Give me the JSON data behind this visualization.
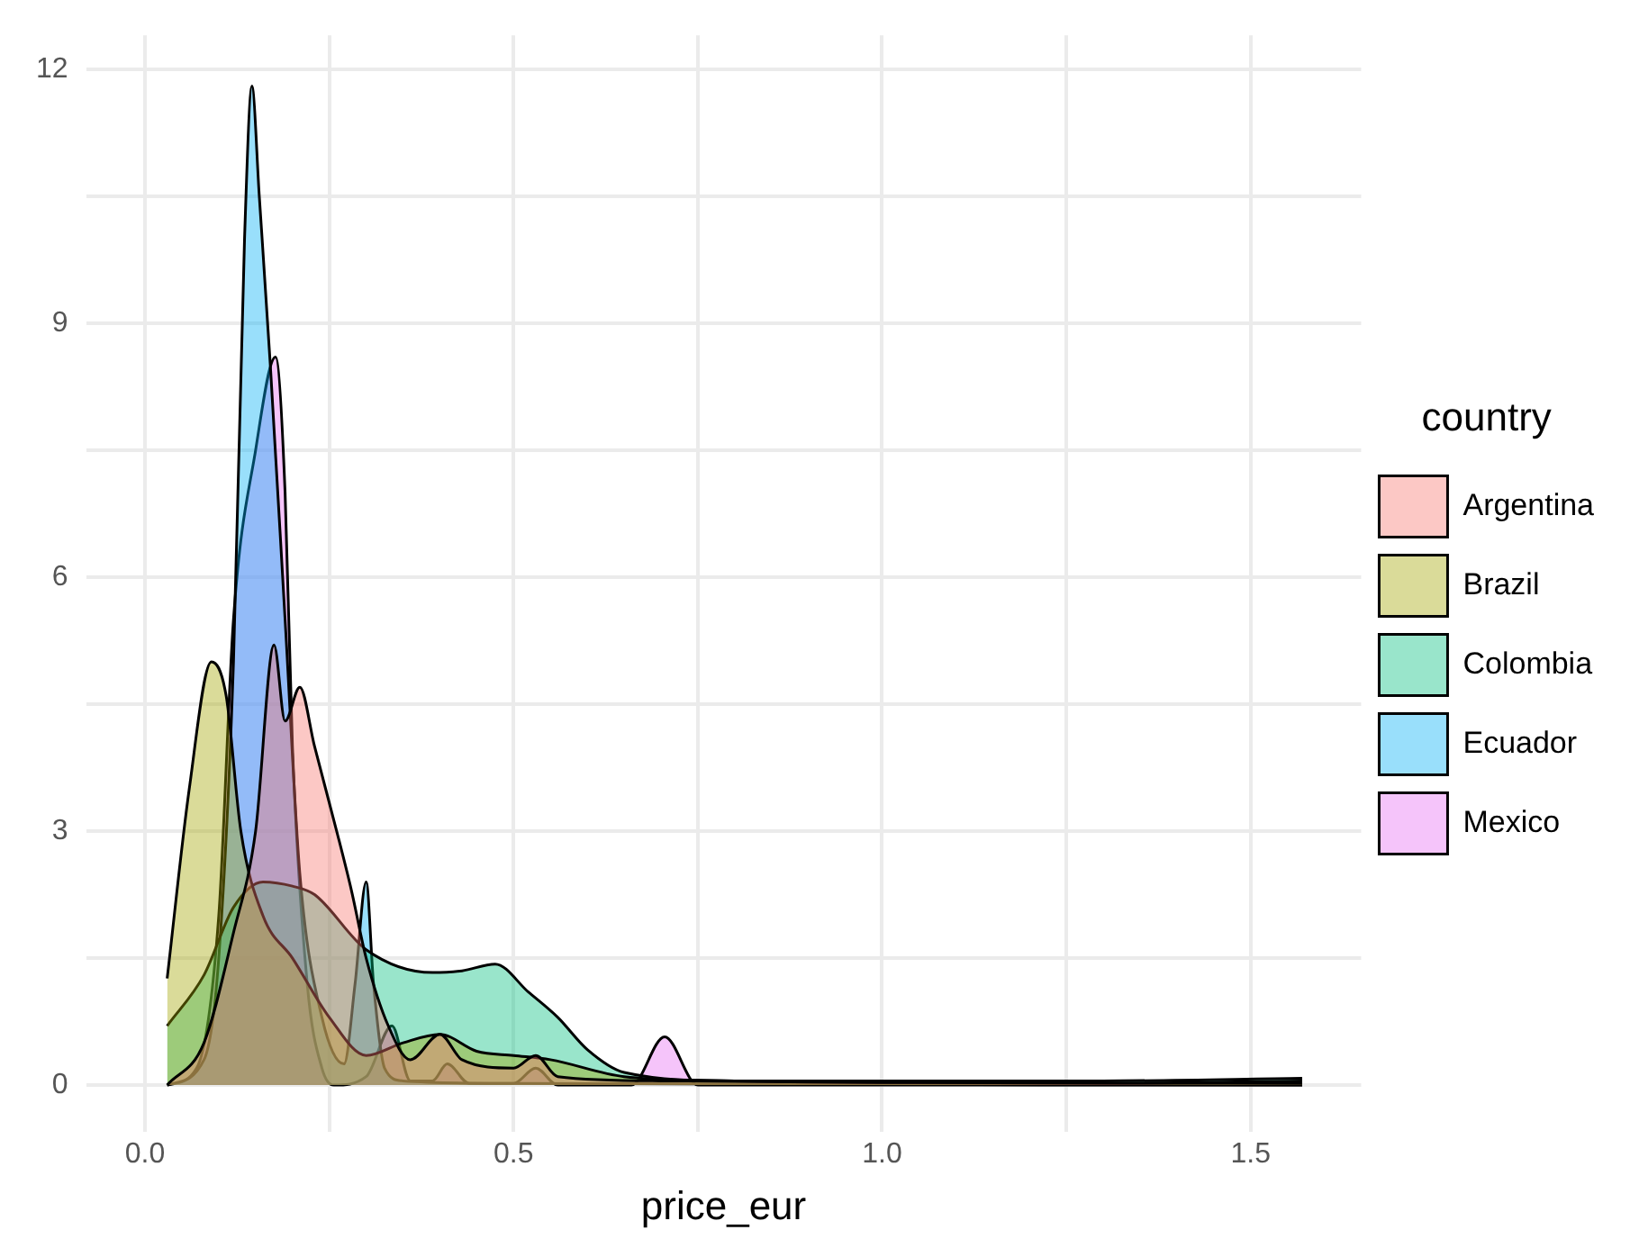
{
  "chart_data": {
    "type": "area",
    "xlabel": "price_eur",
    "legend_title": "country",
    "legend": "right",
    "grid": true,
    "marker": "none",
    "line_style": "solid",
    "xlim": [
      -0.08,
      1.65
    ],
    "ylim": [
      -0.55,
      12.4
    ],
    "xticks": [
      {
        "value": 0,
        "label": "0.0"
      },
      {
        "value": 0.25,
        "label": null
      },
      {
        "value": 0.5,
        "label": "0.5"
      },
      {
        "value": 0.75,
        "label": null
      },
      {
        "value": 1,
        "label": "1.0"
      },
      {
        "value": 1.25,
        "label": null
      },
      {
        "value": 1.5,
        "label": "1.5"
      }
    ],
    "yticks": [
      0,
      {
        "value": 1.5,
        "label": null
      },
      3,
      {
        "value": 4.5,
        "label": null
      },
      6,
      {
        "value": 7.5,
        "label": null
      },
      9,
      {
        "value": 10.5,
        "label": null
      },
      12
    ],
    "series": [
      {
        "name": "Argentina",
        "color": "#f8766d",
        "x": [
          0.03,
          0.08,
          0.12,
          0.15,
          0.175,
          0.19,
          0.21,
          0.23,
          0.26,
          0.28,
          0.3,
          0.33,
          0.36,
          0.4,
          0.43,
          0.5,
          0.53,
          0.56,
          0.7,
          1.0,
          1.57
        ],
        "values": [
          0,
          0.5,
          1.8,
          3.0,
          5.2,
          4.3,
          4.7,
          4.0,
          3.0,
          2.3,
          1.5,
          0.7,
          0.3,
          0.6,
          0.3,
          0.2,
          0.35,
          0.1,
          0.05,
          0.03,
          0.02
        ]
      },
      {
        "name": "Brazil",
        "color": "#a3a500",
        "x": [
          0.03,
          0.06,
          0.09,
          0.11,
          0.13,
          0.16,
          0.2,
          0.25,
          0.3,
          0.35,
          0.4,
          0.45,
          0.5,
          0.55,
          0.65,
          0.8,
          1.0,
          1.3,
          1.57
        ],
        "values": [
          1.26,
          3.5,
          5.0,
          4.6,
          3.0,
          2.0,
          1.5,
          0.8,
          0.35,
          0.5,
          0.6,
          0.4,
          0.35,
          0.3,
          0.1,
          0.05,
          0.03,
          0.02,
          0.05
        ]
      },
      {
        "name": "Colombia",
        "color": "#00bf7d",
        "x": [
          0.03,
          0.08,
          0.12,
          0.16,
          0.2,
          0.23,
          0.3,
          0.39,
          0.43,
          0.475,
          0.52,
          0.56,
          0.6,
          0.65,
          0.8,
          1.0,
          1.3,
          1.57
        ],
        "values": [
          0.7,
          1.3,
          2.1,
          2.4,
          2.35,
          2.25,
          1.6,
          1.33,
          1.35,
          1.43,
          1.1,
          0.8,
          0.42,
          0.15,
          0.05,
          0.05,
          0.05,
          0.08
        ]
      },
      {
        "name": "Ecuador",
        "color": "#00b0f6",
        "x": [
          0.03,
          0.08,
          0.1,
          0.12,
          0.135,
          0.145,
          0.155,
          0.17,
          0.19,
          0.21,
          0.24,
          0.27,
          0.285,
          0.3,
          0.31,
          0.325,
          0.35,
          0.5,
          1.57
        ],
        "values": [
          0,
          0.3,
          1.5,
          5,
          10,
          11.8,
          10.5,
          8.5,
          5.5,
          2.5,
          0.8,
          0.25,
          1.2,
          2.4,
          1.2,
          0.2,
          0.05,
          0.02,
          0
        ]
      },
      {
        "name": "Mexico",
        "color": "#e76bf3",
        "x": [
          0.03,
          0.07,
          0.1,
          0.12,
          0.15,
          0.177,
          0.19,
          0.2,
          0.22,
          0.24,
          0.256,
          0.3,
          0.335,
          0.36,
          0.39,
          0.41,
          0.44,
          0.5,
          0.53,
          0.56,
          0.66,
          0.705,
          0.75,
          1.57
        ],
        "values": [
          0,
          0.2,
          2,
          5.5,
          7.5,
          8.6,
          7,
          4,
          1.2,
          0.2,
          0,
          0.1,
          0.7,
          0.05,
          0.05,
          0.25,
          0.02,
          0.02,
          0.2,
          0,
          0,
          0.57,
          0,
          0
        ]
      }
    ]
  }
}
